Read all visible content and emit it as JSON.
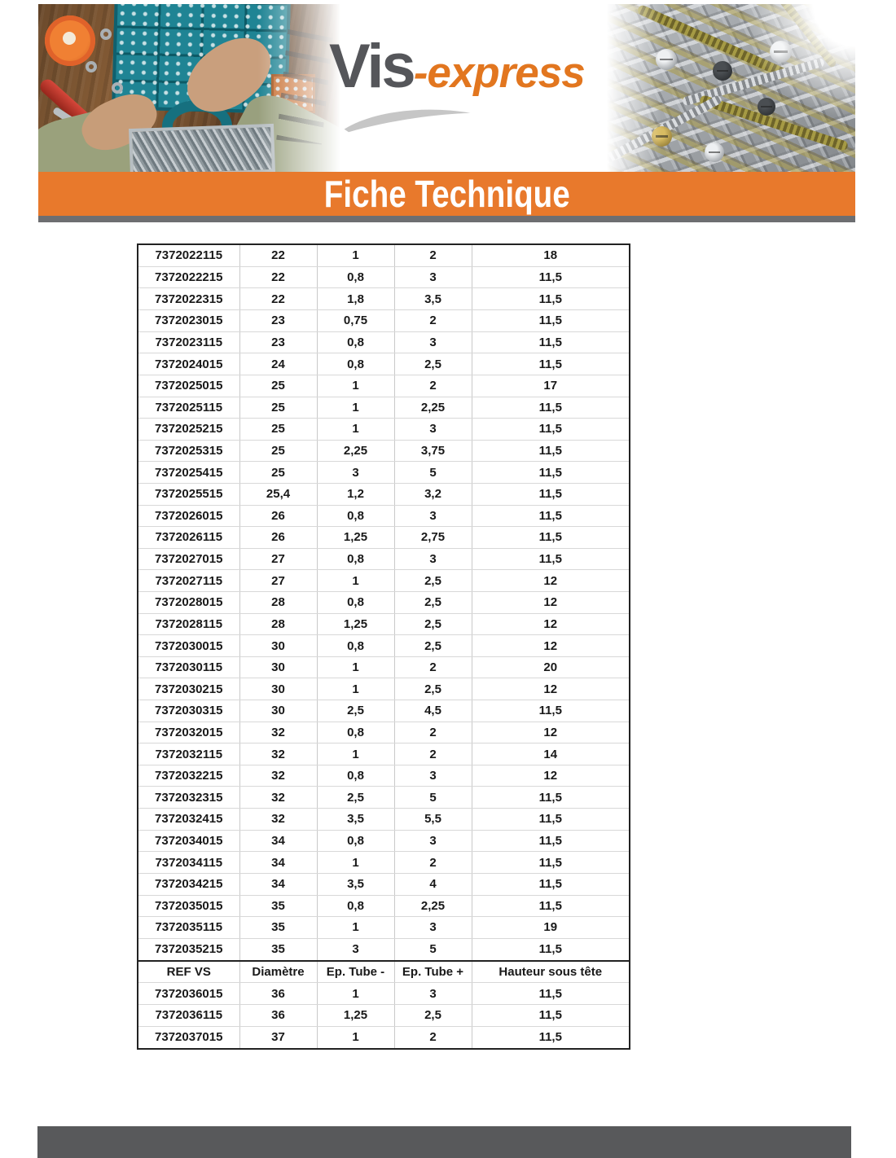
{
  "brand": {
    "name_primary": "Vis",
    "name_secondary": "-express"
  },
  "banner": {
    "title": "Fiche Technique"
  },
  "colors": {
    "banner_orange": "#E8792C",
    "banner_underline_gray": "#6D6E71",
    "footer_gray": "#58595B",
    "logo_gray": "#55565A",
    "logo_orange": "#E2761F"
  },
  "table": {
    "columns": [
      "REF VS",
      "Diamètre",
      "Ep. Tube -",
      "Ep. Tube +",
      "Hauteur sous tête"
    ],
    "header_row_index": 33,
    "rows": [
      [
        "7372022115",
        "22",
        "1",
        "2",
        "18"
      ],
      [
        "7372022215",
        "22",
        "0,8",
        "3",
        "11,5"
      ],
      [
        "7372022315",
        "22",
        "1,8",
        "3,5",
        "11,5"
      ],
      [
        "7372023015",
        "23",
        "0,75",
        "2",
        "11,5"
      ],
      [
        "7372023115",
        "23",
        "0,8",
        "3",
        "11,5"
      ],
      [
        "7372024015",
        "24",
        "0,8",
        "2,5",
        "11,5"
      ],
      [
        "7372025015",
        "25",
        "1",
        "2",
        "17"
      ],
      [
        "7372025115",
        "25",
        "1",
        "2,25",
        "11,5"
      ],
      [
        "7372025215",
        "25",
        "1",
        "3",
        "11,5"
      ],
      [
        "7372025315",
        "25",
        "2,25",
        "3,75",
        "11,5"
      ],
      [
        "7372025415",
        "25",
        "3",
        "5",
        "11,5"
      ],
      [
        "7372025515",
        "25,4",
        "1,2",
        "3,2",
        "11,5"
      ],
      [
        "7372026015",
        "26",
        "0,8",
        "3",
        "11,5"
      ],
      [
        "7372026115",
        "26",
        "1,25",
        "2,75",
        "11,5"
      ],
      [
        "7372027015",
        "27",
        "0,8",
        "3",
        "11,5"
      ],
      [
        "7372027115",
        "27",
        "1",
        "2,5",
        "12"
      ],
      [
        "7372028015",
        "28",
        "0,8",
        "2,5",
        "12"
      ],
      [
        "7372028115",
        "28",
        "1,25",
        "2,5",
        "12"
      ],
      [
        "7372030015",
        "30",
        "0,8",
        "2,5",
        "12"
      ],
      [
        "7372030115",
        "30",
        "1",
        "2",
        "20"
      ],
      [
        "7372030215",
        "30",
        "1",
        "2,5",
        "12"
      ],
      [
        "7372030315",
        "30",
        "2,5",
        "4,5",
        "11,5"
      ],
      [
        "7372032015",
        "32",
        "0,8",
        "2",
        "12"
      ],
      [
        "7372032115",
        "32",
        "1",
        "2",
        "14"
      ],
      [
        "7372032215",
        "32",
        "0,8",
        "3",
        "12"
      ],
      [
        "7372032315",
        "32",
        "2,5",
        "5",
        "11,5"
      ],
      [
        "7372032415",
        "32",
        "3,5",
        "5,5",
        "11,5"
      ],
      [
        "7372034015",
        "34",
        "0,8",
        "3",
        "11,5"
      ],
      [
        "7372034115",
        "34",
        "1",
        "2",
        "11,5"
      ],
      [
        "7372034215",
        "34",
        "3,5",
        "4",
        "11,5"
      ],
      [
        "7372035015",
        "35",
        "0,8",
        "2,25",
        "11,5"
      ],
      [
        "7372035115",
        "35",
        "1",
        "3",
        "19"
      ],
      [
        "7372035215",
        "35",
        "3",
        "5",
        "11,5"
      ],
      [
        "7372036015",
        "36",
        "1",
        "3",
        "11,5"
      ],
      [
        "7372036115",
        "36",
        "1,25",
        "2,5",
        "11,5"
      ],
      [
        "7372037015",
        "37",
        "1",
        "2",
        "11,5"
      ]
    ]
  }
}
